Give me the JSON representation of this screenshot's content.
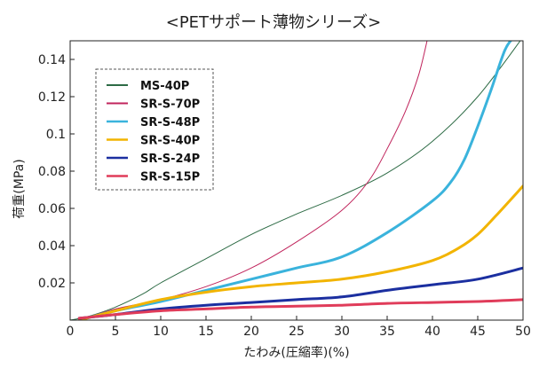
{
  "chart_data": {
    "type": "line",
    "title": "<PETサポート薄物シリーズ>",
    "xlabel": "たわみ(圧縮率)(%)",
    "ylabel": "荷重(MPa)",
    "xlim": [
      0,
      50
    ],
    "ylim": [
      0,
      0.15
    ],
    "x_ticks": [
      0,
      5,
      10,
      15,
      20,
      25,
      30,
      35,
      40,
      45,
      50
    ],
    "x_tick_labels": [
      "0",
      "5",
      "10",
      "15",
      "20",
      "25",
      "30",
      "35",
      "40",
      "45",
      "50"
    ],
    "y_ticks": [
      0.02,
      0.04,
      0.06,
      0.08,
      0.1,
      0.12,
      0.14
    ],
    "y_tick_labels": [
      "0.02",
      "0.04",
      "0.06",
      "0.08",
      "0.1",
      "0.12",
      "0.14"
    ],
    "grid": false,
    "legend_position": "top-left",
    "series": [
      {
        "name": "MS-40P",
        "color": "#2d6b45",
        "width": 1,
        "x": [
          0,
          2,
          5,
          8,
          10,
          15,
          20,
          25,
          30,
          35,
          40,
          45,
          50
        ],
        "y": [
          0,
          0.002,
          0.007,
          0.014,
          0.02,
          0.033,
          0.046,
          0.057,
          0.067,
          0.079,
          0.096,
          0.12,
          0.152
        ]
      },
      {
        "name": "SR-S-70P",
        "color": "#c0245c",
        "width": 1,
        "x": [
          1,
          5,
          10,
          15,
          20,
          25,
          30,
          33,
          35,
          37,
          38.5,
          39.5
        ],
        "y": [
          0,
          0.006,
          0.011,
          0.018,
          0.028,
          0.042,
          0.059,
          0.075,
          0.092,
          0.112,
          0.132,
          0.152
        ]
      },
      {
        "name": "SR-S-48P",
        "color": "#3ab3dc",
        "width": 3,
        "x": [
          1,
          5,
          10,
          15,
          20,
          25,
          30,
          35,
          40,
          42,
          43.5,
          45,
          46.5,
          48,
          49
        ],
        "y": [
          0,
          0.005,
          0.01,
          0.016,
          0.022,
          0.028,
          0.034,
          0.047,
          0.064,
          0.074,
          0.086,
          0.104,
          0.124,
          0.145,
          0.152
        ]
      },
      {
        "name": "SR-S-40P",
        "color": "#f2b400",
        "width": 3,
        "x": [
          1,
          5,
          10,
          15,
          20,
          25,
          30,
          35,
          40,
          43,
          45,
          47,
          50
        ],
        "y": [
          0,
          0.005,
          0.011,
          0.015,
          0.018,
          0.02,
          0.022,
          0.026,
          0.032,
          0.039,
          0.046,
          0.056,
          0.072
        ]
      },
      {
        "name": "SR-S-24P",
        "color": "#1b2fa0",
        "width": 3,
        "x": [
          1,
          5,
          10,
          15,
          20,
          25,
          30,
          35,
          40,
          45,
          50
        ],
        "y": [
          0.001,
          0.003,
          0.006,
          0.008,
          0.0095,
          0.011,
          0.0125,
          0.016,
          0.019,
          0.022,
          0.028
        ]
      },
      {
        "name": "SR-S-15P",
        "color": "#e03c5a",
        "width": 3,
        "x": [
          1,
          5,
          10,
          15,
          20,
          25,
          30,
          35,
          40,
          45,
          50
        ],
        "y": [
          0.001,
          0.003,
          0.005,
          0.006,
          0.007,
          0.0075,
          0.008,
          0.009,
          0.0095,
          0.01,
          0.011
        ]
      }
    ]
  }
}
